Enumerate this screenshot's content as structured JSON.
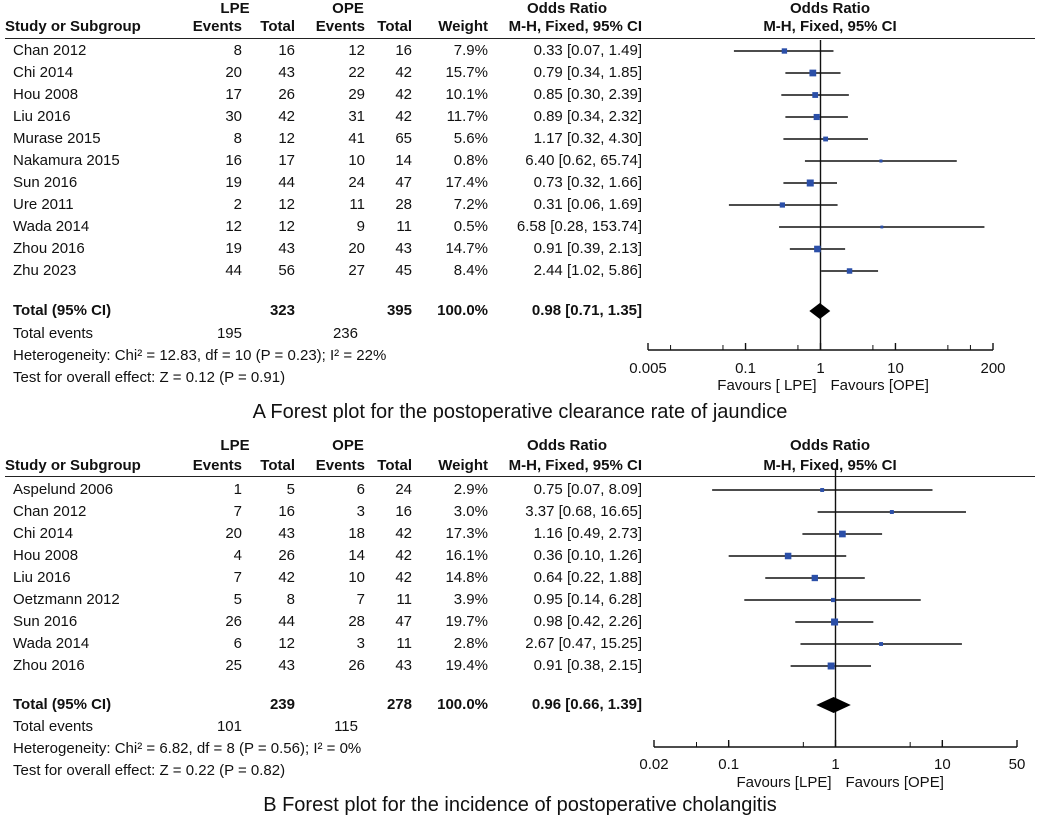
{
  "chart_data": [
    {
      "type": "forest",
      "caption": "A Forest plot for the postoperative clearance rate of jaundice",
      "header": {
        "group1": "LPE",
        "group2": "OPE",
        "or_title": "Odds Ratio",
        "study_col": "Study or Subgroup",
        "events_col": "Events",
        "total_col": "Total",
        "weight_col": "Weight",
        "method_col": "M-H, Fixed, 95% CI",
        "plot_title": "Odds Ratio",
        "plot_method": "M-H, Fixed, 95% CI"
      },
      "studies": [
        {
          "name": "Chan 2012",
          "e1": "8",
          "t1": "16",
          "e2": "12",
          "t2": "16",
          "weight": "7.9%",
          "ci_text": "0.33 [0.07, 1.49]",
          "or": 0.33,
          "lo": 0.07,
          "hi": 1.49
        },
        {
          "name": "Chi 2014",
          "e1": "20",
          "t1": "43",
          "e2": "22",
          "t2": "42",
          "weight": "15.7%",
          "ci_text": "0.79 [0.34, 1.85]",
          "or": 0.79,
          "lo": 0.34,
          "hi": 1.85
        },
        {
          "name": "Hou 2008",
          "e1": "17",
          "t1": "26",
          "e2": "29",
          "t2": "42",
          "weight": "10.1%",
          "ci_text": "0.85 [0.30, 2.39]",
          "or": 0.85,
          "lo": 0.3,
          "hi": 2.39
        },
        {
          "name": "Liu 2016",
          "e1": "30",
          "t1": "42",
          "e2": "31",
          "t2": "42",
          "weight": "11.7%",
          "ci_text": "0.89 [0.34, 2.32]",
          "or": 0.89,
          "lo": 0.34,
          "hi": 2.32
        },
        {
          "name": "Murase 2015",
          "e1": "8",
          "t1": "12",
          "e2": "41",
          "t2": "65",
          "weight": "5.6%",
          "ci_text": "1.17 [0.32, 4.30]",
          "or": 1.17,
          "lo": 0.32,
          "hi": 4.3
        },
        {
          "name": "Nakamura 2015",
          "e1": "16",
          "t1": "17",
          "e2": "10",
          "t2": "14",
          "weight": "0.8%",
          "ci_text": "6.40 [0.62, 65.74]",
          "or": 6.4,
          "lo": 0.62,
          "hi": 65.74
        },
        {
          "name": "Sun 2016",
          "e1": "19",
          "t1": "44",
          "e2": "24",
          "t2": "47",
          "weight": "17.4%",
          "ci_text": "0.73 [0.32, 1.66]",
          "or": 0.73,
          "lo": 0.32,
          "hi": 1.66
        },
        {
          "name": "Ure 2011",
          "e1": "2",
          "t1": "12",
          "e2": "11",
          "t2": "28",
          "weight": "7.2%",
          "ci_text": "0.31 [0.06, 1.69]",
          "or": 0.31,
          "lo": 0.06,
          "hi": 1.69
        },
        {
          "name": "Wada 2014",
          "e1": "12",
          "t1": "12",
          "e2": "9",
          "t2": "11",
          "weight": "0.5%",
          "ci_text": "6.58 [0.28, 153.74]",
          "or": 6.58,
          "lo": 0.28,
          "hi": 153.74
        },
        {
          "name": "Zhou 2016",
          "e1": "19",
          "t1": "43",
          "e2": "20",
          "t2": "43",
          "weight": "14.7%",
          "ci_text": "0.91 [0.39, 2.13]",
          "or": 0.91,
          "lo": 0.39,
          "hi": 2.13
        },
        {
          "name": "Zhu 2023",
          "e1": "44",
          "t1": "56",
          "e2": "27",
          "t2": "45",
          "weight": "8.4%",
          "ci_text": "2.44 [1.02, 5.86]",
          "or": 2.44,
          "lo": 1.02,
          "hi": 5.86
        }
      ],
      "total": {
        "label": "Total (95% CI)",
        "t1": "323",
        "t2": "395",
        "weight": "100.0%",
        "ci_text": "0.98 [0.71, 1.35]",
        "or": 0.98,
        "lo": 0.71,
        "hi": 1.35
      },
      "total_events": {
        "label": "Total events",
        "e1": "195",
        "e2": "236"
      },
      "heterogeneity": "Heterogeneity: Chi² = 12.83, df = 10 (P = 0.23); I² = 22%",
      "overall_effect": "Test for overall effect: Z = 0.12 (P = 0.91)",
      "axis": {
        "min": 0.005,
        "max": 200,
        "ticks": [
          0.005,
          0.1,
          1,
          10,
          200
        ],
        "tick_labels": [
          "0.005",
          "0.1",
          "1",
          "10",
          "200"
        ],
        "scale": "log"
      },
      "favours_left": "Favours [ LPE]",
      "favours_right": "Favours [OPE]"
    },
    {
      "type": "forest",
      "caption": "B Forest plot for the incidence of postoperative cholangitis",
      "header": {
        "group1": "LPE",
        "group2": "OPE",
        "or_title": "Odds Ratio",
        "study_col": "Study or Subgroup",
        "events_col": "Events",
        "total_col": "Total",
        "weight_col": "Weight",
        "method_col": "M-H, Fixed, 95% CI",
        "plot_title": "Odds Ratio",
        "plot_method": "M-H, Fixed, 95% CI"
      },
      "studies": [
        {
          "name": "Aspelund 2006",
          "e1": "1",
          "t1": "5",
          "e2": "6",
          "t2": "24",
          "weight": "2.9%",
          "ci_text": "0.75 [0.07, 8.09]",
          "or": 0.75,
          "lo": 0.07,
          "hi": 8.09
        },
        {
          "name": "Chan 2012",
          "e1": "7",
          "t1": "16",
          "e2": "3",
          "t2": "16",
          "weight": "3.0%",
          "ci_text": "3.37 [0.68, 16.65]",
          "or": 3.37,
          "lo": 0.68,
          "hi": 16.65
        },
        {
          "name": "Chi 2014",
          "e1": "20",
          "t1": "43",
          "e2": "18",
          "t2": "42",
          "weight": "17.3%",
          "ci_text": "1.16 [0.49, 2.73]",
          "or": 1.16,
          "lo": 0.49,
          "hi": 2.73
        },
        {
          "name": "Hou 2008",
          "e1": "4",
          "t1": "26",
          "e2": "14",
          "t2": "42",
          "weight": "16.1%",
          "ci_text": "0.36 [0.10, 1.26]",
          "or": 0.36,
          "lo": 0.1,
          "hi": 1.26
        },
        {
          "name": "Liu 2016",
          "e1": "7",
          "t1": "42",
          "e2": "10",
          "t2": "42",
          "weight": "14.8%",
          "ci_text": "0.64 [0.22, 1.88]",
          "or": 0.64,
          "lo": 0.22,
          "hi": 1.88
        },
        {
          "name": "Oetzmann 2012",
          "e1": "5",
          "t1": "8",
          "e2": "7",
          "t2": "11",
          "weight": "3.9%",
          "ci_text": "0.95 [0.14, 6.28]",
          "or": 0.95,
          "lo": 0.14,
          "hi": 6.28
        },
        {
          "name": "Sun 2016",
          "e1": "26",
          "t1": "44",
          "e2": "28",
          "t2": "47",
          "weight": "19.7%",
          "ci_text": "0.98 [0.42, 2.26]",
          "or": 0.98,
          "lo": 0.42,
          "hi": 2.26
        },
        {
          "name": "Wada 2014",
          "e1": "6",
          "t1": "12",
          "e2": "3",
          "t2": "11",
          "weight": "2.8%",
          "ci_text": "2.67 [0.47, 15.25]",
          "or": 2.67,
          "lo": 0.47,
          "hi": 15.25
        },
        {
          "name": "Zhou 2016",
          "e1": "25",
          "t1": "43",
          "e2": "26",
          "t2": "43",
          "weight": "19.4%",
          "ci_text": "0.91 [0.38, 2.15]",
          "or": 0.91,
          "lo": 0.38,
          "hi": 2.15
        }
      ],
      "total": {
        "label": "Total (95% CI)",
        "t1": "239",
        "t2": "278",
        "weight": "100.0%",
        "ci_text": "0.96 [0.66, 1.39]",
        "or": 0.96,
        "lo": 0.66,
        "hi": 1.39
      },
      "total_events": {
        "label": "Total events",
        "e1": "101",
        "e2": "115"
      },
      "heterogeneity": "Heterogeneity: Chi² = 6.82, df = 8 (P = 0.56); I² = 0%",
      "overall_effect": "Test for overall effect: Z = 0.22 (P = 0.82)",
      "axis": {
        "min": 0.02,
        "max": 50,
        "ticks": [
          0.02,
          0.1,
          1,
          10,
          50
        ],
        "tick_labels": [
          "0.02",
          "0.1",
          "1",
          "10",
          "50"
        ],
        "scale": "log"
      },
      "favours_left": "Favours [LPE]",
      "favours_right": "Favours [OPE]"
    }
  ],
  "colors": {
    "marker": "#2b4fa8",
    "line": "#111111",
    "diamond": "#000000"
  }
}
